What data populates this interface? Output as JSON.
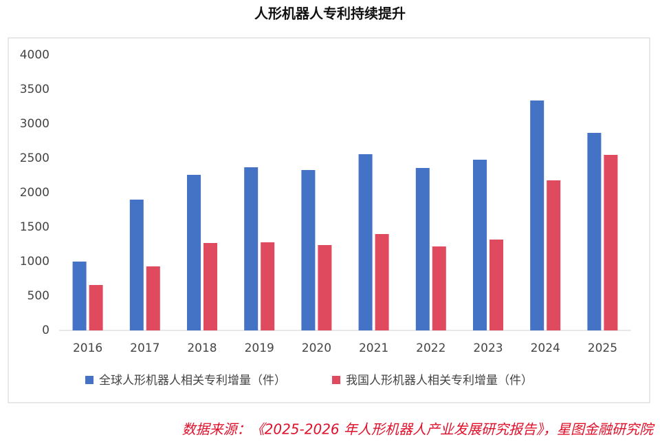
{
  "chart_data": {
    "type": "bar",
    "title": "人形机器人专利持续提升",
    "categories": [
      "2016",
      "2017",
      "2018",
      "2019",
      "2020",
      "2021",
      "2022",
      "2023",
      "2024",
      "2025"
    ],
    "series": [
      {
        "name": "全球人形机器人相关专利增量（件）",
        "color": "#4472c4",
        "values": [
          1000,
          1900,
          2260,
          2370,
          2330,
          2560,
          2360,
          2480,
          3340,
          2870
        ]
      },
      {
        "name": "我国人形机器人相关专利增量（件）",
        "color": "#e04a5f",
        "values": [
          660,
          930,
          1270,
          1280,
          1240,
          1400,
          1220,
          1320,
          2180,
          2550
        ]
      }
    ],
    "ylim": [
      0,
      4000
    ],
    "yticks": [
      0,
      500,
      1000,
      1500,
      2000,
      2500,
      3000,
      3500,
      4000
    ],
    "grid": false,
    "legend": "bottom",
    "source": "数据来源：《2025-2026 年人形机器人产业发展研究报告》，星图金融研究院"
  }
}
